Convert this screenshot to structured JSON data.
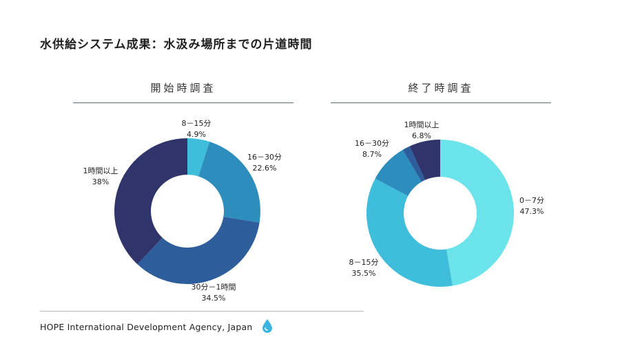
{
  "title": "水供給システム成果：水汲み場所までの片道時間",
  "footer": {
    "organization": "HOPE International Development Agency, Japan",
    "icon": "water-drop-icon"
  },
  "colors": {
    "navy": "#2f346b",
    "blue_mid": "#2e5d9c",
    "blue": "#2d8ebd",
    "cyan": "#3fbedb",
    "light_cyan": "#6be3ea",
    "drop": "#3ab5e0"
  },
  "chart_data": [
    {
      "type": "pie",
      "subtype": "donut",
      "title": "開始時調査",
      "slices": [
        {
          "label": "8－15分",
          "value": 4.9,
          "value_label": "4.9%",
          "color": "#3fbedb"
        },
        {
          "label": "16－30分",
          "value": 22.6,
          "value_label": "22.6%",
          "color": "#2d8ebd"
        },
        {
          "label": "30分－1時間",
          "value": 34.5,
          "value_label": "34.5%",
          "color": "#2e5d9c"
        },
        {
          "label": "1時間以上",
          "value": 38,
          "value_label": "38%",
          "color": "#2f346b"
        }
      ]
    },
    {
      "type": "pie",
      "subtype": "donut",
      "title": "終了時調査",
      "slices": [
        {
          "label": "0－7分",
          "value": 47.3,
          "value_label": "47.3%",
          "color": "#6be3ea"
        },
        {
          "label": "8－15分",
          "value": 35.5,
          "value_label": "35.5%",
          "color": "#3fbedb"
        },
        {
          "label": "16－30分",
          "value": 8.7,
          "value_label": "8.7%",
          "color": "#2d8ebd"
        },
        {
          "label": "",
          "value": 1.7,
          "value_label": "",
          "color": "#2e5d9c"
        },
        {
          "label": "1時間以上",
          "value": 6.8,
          "value_label": "6.8%",
          "color": "#2f346b"
        }
      ]
    }
  ]
}
